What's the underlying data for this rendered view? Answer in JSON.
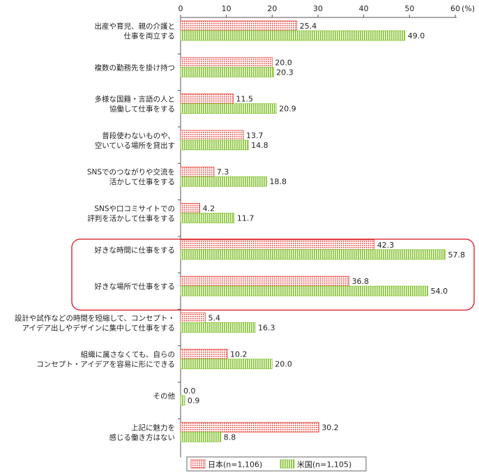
{
  "chart_data": {
    "type": "bar",
    "orientation": "horizontal",
    "unit_label": "(%)",
    "xlim": [
      0,
      60
    ],
    "xticks": [
      0,
      10,
      20,
      30,
      40,
      50,
      60
    ],
    "grid": false,
    "legend_position": "bottom",
    "categories": [
      [
        "出産や育児、親の介護と",
        "仕事を両立する"
      ],
      [
        "複数の勤務先を掛け持つ"
      ],
      [
        "多様な国籍・言語の人と",
        "協働して仕事をする"
      ],
      [
        "普段使わないものや、",
        "空いている場所を貸出す"
      ],
      [
        "SNSでのつながりや交流を",
        "活かして仕事をする"
      ],
      [
        "SNSや口コミサイトでの",
        "評判を活かして仕事をする"
      ],
      [
        "好きな時間に仕事をする"
      ],
      [
        "好きな場所で仕事をする"
      ],
      [
        "設計や試作などの時間を短縮して、コンセプト・",
        "アイデア出しやデザインに集中して仕事をする"
      ],
      [
        "組織に属さなくても、自らの",
        "コンセプト・アイデアを容易に形にできる"
      ],
      [
        "その他"
      ],
      [
        "上記に魅力を",
        "感じる働き方はない"
      ]
    ],
    "series": [
      {
        "name": "日本(n=1,106)",
        "color": "#e8453c",
        "pattern": "dotted",
        "values": [
          25.4,
          20.0,
          11.5,
          13.7,
          7.3,
          4.2,
          42.3,
          36.8,
          5.4,
          10.2,
          0.0,
          30.2
        ]
      },
      {
        "name": "米国(n=1,105)",
        "color": "#8dc63f",
        "pattern": "vertical-stripes",
        "values": [
          49.0,
          20.3,
          20.9,
          14.8,
          18.8,
          11.7,
          57.8,
          54.0,
          16.3,
          20.0,
          0.9,
          8.8
        ]
      }
    ],
    "highlight": {
      "categories": [
        6,
        7
      ],
      "color": "#d9232e"
    }
  }
}
